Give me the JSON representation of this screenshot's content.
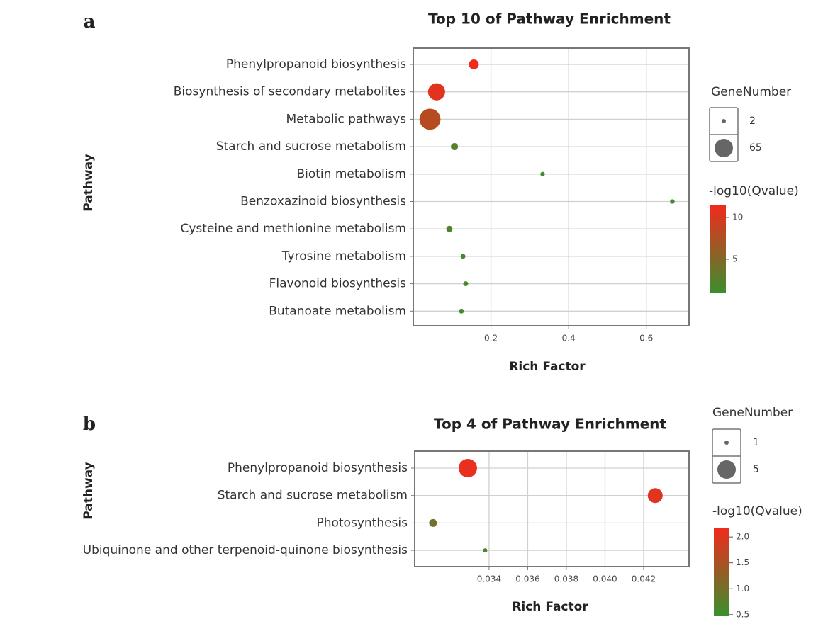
{
  "chart_data": [
    {
      "type": "scatter",
      "panel_label": "a",
      "title": "Top 10 of Pathway Enrichment",
      "x_label": "Rich Factor",
      "y_label": "Pathway",
      "categories": [
        "Phenylpropanoid biosynthesis",
        "Biosynthesis of secondary metabolites",
        "Metabolic pathways",
        "Starch and sucrose metabolism",
        "Biotin metabolism",
        "Benzoxazinoid biosynthesis",
        "Cysteine and methionine metabolism",
        "Tyrosine metabolism",
        "Flavonoid biosynthesis",
        "Butanoate metabolism"
      ],
      "x": [
        0.156,
        0.06,
        0.043,
        0.106,
        0.333,
        0.667,
        0.093,
        0.128,
        0.135,
        0.124
      ],
      "size": [
        27,
        59,
        77,
        15,
        3,
        3,
        11,
        5,
        5,
        5
      ],
      "qvalue": [
        11.4,
        10.5,
        8,
        2.5,
        1.5,
        1.5,
        2,
        1.5,
        1.5,
        1.5
      ],
      "xlim": [
        0,
        0.71
      ],
      "xticks": [
        0.2,
        0.4,
        0.6
      ],
      "grid": true,
      "size_legend_title": "GeneNumber",
      "size_legend": [
        2,
        65
      ],
      "color_legend_title": "-log10(Qvalue)",
      "colorlim": [
        0.93,
        11.44
      ],
      "colorticks": [
        10,
        5
      ],
      "color_low": "#3a8f2f",
      "color_high": "#f22a1c"
    },
    {
      "type": "scatter",
      "panel_label": "b",
      "title": "Top 4 of Pathway Enrichment",
      "x_label": "Rich Factor",
      "y_label": "Pathway",
      "categories": [
        "Phenylpropanoid biosynthesis",
        "Starch and sucrose metabolism",
        "Photosynthesis",
        "Ubiquinone and other terpenoid-quinone biosynthesis"
      ],
      "x": [
        0.0329,
        0.0426,
        0.0311,
        0.0338
      ],
      "size": [
        5,
        4,
        2,
        1
      ],
      "qvalue": [
        2.1,
        2.0,
        1.0,
        0.6
      ],
      "xlim": [
        0.03015,
        0.04435
      ],
      "xticks": [
        0.034,
        0.036,
        0.038,
        {
          "value": 0.04,
          "label": "0.040"
        },
        0.042
      ],
      "grid": true,
      "size_legend_title": "GeneNumber",
      "size_legend": [
        1,
        5
      ],
      "color_legend_title": "-log10(Qvalue)",
      "colorlim": [
        0.47,
        2.18
      ],
      "colorticks": [
        {
          "value": 2,
          "label": "2.0"
        },
        1.5,
        {
          "value": 1,
          "label": "1.0"
        },
        0.5
      ],
      "color_low": "#3a8f2f",
      "color_high": "#f22a1c"
    }
  ]
}
